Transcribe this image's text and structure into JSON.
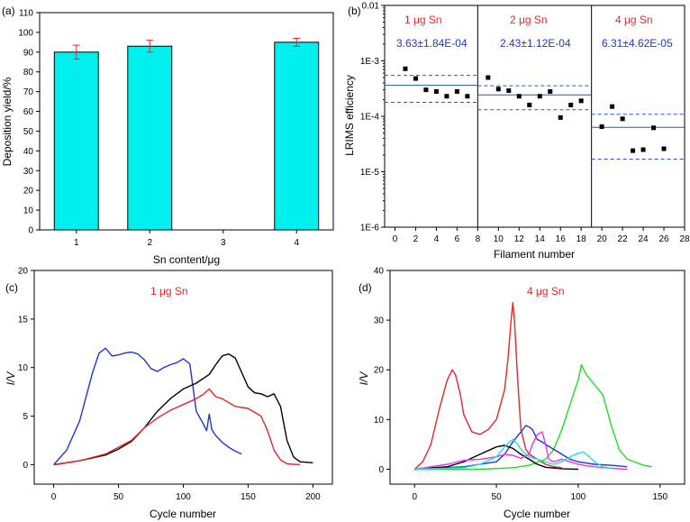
{
  "colors": {
    "bar_fill": "#00f0f0",
    "err": "#e8262a",
    "red": "#e8262a",
    "blue": "#1f35d8",
    "black": "#000000",
    "green": "#22dd22",
    "magenta": "#ee33ee",
    "cyan": "#22dddd",
    "mean_line": "#2255dd"
  },
  "chart_data": [
    {
      "panel": "(a)",
      "type": "bar",
      "xlabel": "Sn content/μg",
      "ylabel": "Deposition yield/%",
      "xlim": [
        0.5,
        4.5
      ],
      "xticks": [
        "1",
        "2",
        "3",
        "4"
      ],
      "ylim": [
        0,
        110
      ],
      "yticks": [
        "0",
        "10",
        "20",
        "30",
        "40",
        "50",
        "60",
        "70",
        "80",
        "90",
        "100",
        "110"
      ],
      "categories": [
        "1",
        "2",
        "4"
      ],
      "values": [
        90,
        93,
        95
      ],
      "errors": [
        3.5,
        3,
        2
      ]
    },
    {
      "panel": "(b)",
      "type": "scatter",
      "xlabel": "Filament number",
      "ylabel": "LRIMS efficiency",
      "xlim": [
        -1,
        28
      ],
      "xticks": [
        "0",
        "2",
        "4",
        "6",
        "8",
        "10",
        "12",
        "14",
        "16",
        "18",
        "20",
        "22",
        "24",
        "26",
        "28"
      ],
      "yscale": "log",
      "ylim": [
        1e-06,
        0.01
      ],
      "yticks": [
        "1E-6",
        "1E-5",
        "1E-4",
        "1E-3",
        "0.01"
      ],
      "dividers": [
        8,
        19
      ],
      "groups": [
        {
          "label": "1 μg Sn",
          "stat": "3.63±1.84E-04",
          "x_range": [
            -1,
            8
          ],
          "mean": 0.000363,
          "upper": 0.000547,
          "lower": 0.000179,
          "points": [
            [
              1,
              0.00072
            ],
            [
              2,
              0.00048
            ],
            [
              3,
              0.0003
            ],
            [
              4,
              0.00028
            ],
            [
              5,
              0.00023
            ],
            [
              6,
              0.00028
            ],
            [
              7,
              0.00023
            ]
          ]
        },
        {
          "label": "2 μg Sn",
          "stat": "2.43±1.12E-04",
          "x_range": [
            8,
            19
          ],
          "mean": 0.000243,
          "upper": 0.000355,
          "lower": 0.000131,
          "points": [
            [
              9,
              0.0005
            ],
            [
              10,
              0.00031
            ],
            [
              11,
              0.00029
            ],
            [
              12,
              0.00023
            ],
            [
              13,
              0.00016
            ],
            [
              14,
              0.00023
            ],
            [
              15,
              0.00028
            ],
            [
              16,
              9.5e-05
            ],
            [
              17,
              0.00016
            ],
            [
              18,
              0.00019
            ]
          ]
        },
        {
          "label": "4 μg Sn",
          "stat": "6.31±4.62E-05",
          "x_range": [
            19,
            28
          ],
          "mean": 6.31e-05,
          "upper": 0.000109,
          "lower": 1.69e-05,
          "points": [
            [
              20,
              6.5e-05
            ],
            [
              21,
              0.00015
            ],
            [
              22,
              9e-05
            ],
            [
              23,
              2.4e-05
            ],
            [
              24,
              2.5e-05
            ],
            [
              25,
              6.2e-05
            ],
            [
              26,
              2.6e-05
            ]
          ]
        }
      ]
    },
    {
      "panel": "(c)",
      "type": "line",
      "annotation": "1 μg Sn",
      "xlabel": "Cycle number",
      "ylabel": "I/V",
      "xlim": [
        -15,
        215
      ],
      "xticks": [
        "0",
        "50",
        "100",
        "150",
        "200"
      ],
      "ylim": [
        -2,
        20
      ],
      "yticks": [
        "0",
        "5",
        "10",
        "15",
        "20"
      ],
      "series": [
        {
          "name": "blue",
          "color": "blue",
          "x": [
            0,
            10,
            20,
            30,
            35,
            40,
            45,
            50,
            55,
            60,
            65,
            70,
            75,
            80,
            85,
            90,
            95,
            100,
            105,
            110,
            115,
            118,
            120,
            122,
            125,
            130,
            135,
            140,
            145
          ],
          "y": [
            0,
            1.5,
            4.5,
            9.5,
            11.5,
            12.0,
            11.2,
            11.3,
            11.5,
            11.6,
            11.4,
            10.8,
            9.9,
            9.6,
            10.0,
            10.3,
            10.5,
            10.9,
            10.4,
            5.5,
            4.3,
            3.5,
            5.2,
            3.6,
            3.0,
            2.3,
            1.8,
            1.4,
            1.1
          ]
        },
        {
          "name": "black",
          "color": "black",
          "x": [
            0,
            20,
            40,
            50,
            60,
            70,
            80,
            90,
            100,
            110,
            120,
            125,
            130,
            135,
            140,
            145,
            150,
            155,
            160,
            165,
            170,
            175,
            180,
            185,
            190,
            200
          ],
          "y": [
            0,
            0.4,
            1.0,
            1.6,
            2.4,
            3.8,
            5.5,
            6.8,
            7.8,
            8.4,
            9.3,
            10.3,
            11.2,
            11.4,
            11.0,
            9.5,
            8.0,
            7.4,
            7.3,
            7.0,
            7.3,
            6.0,
            2.5,
            0.8,
            0.3,
            0.2
          ]
        },
        {
          "name": "red",
          "color": "red",
          "x": [
            0,
            20,
            40,
            50,
            60,
            70,
            80,
            90,
            100,
            110,
            115,
            120,
            125,
            130,
            140,
            150,
            160,
            165,
            170,
            175,
            180,
            190
          ],
          "y": [
            0,
            0.4,
            1.1,
            1.8,
            2.5,
            3.8,
            4.8,
            5.6,
            6.2,
            6.8,
            7.2,
            7.8,
            7.0,
            6.8,
            6.0,
            5.8,
            5.0,
            3.5,
            1.5,
            0.5,
            0.1,
            0
          ]
        }
      ]
    },
    {
      "panel": "(d)",
      "type": "line",
      "annotation": "4 μg Sn",
      "xlabel": "Cycle number",
      "ylabel": "I/V",
      "xlim": [
        -15,
        165
      ],
      "xticks": [
        "0",
        "50",
        "100",
        "150"
      ],
      "ylim": [
        -3,
        40
      ],
      "yticks": [
        "0",
        "10",
        "20",
        "30",
        "40"
      ],
      "series": [
        {
          "name": "red",
          "color": "red",
          "x": [
            0,
            5,
            10,
            15,
            20,
            23,
            25,
            28,
            30,
            35,
            40,
            45,
            50,
            55,
            57,
            59,
            60,
            61,
            63,
            65,
            68,
            70,
            75,
            80,
            85,
            90
          ],
          "y": [
            0,
            1.5,
            5.0,
            12.0,
            18.0,
            20.0,
            19.0,
            15.0,
            11.0,
            7.5,
            7.0,
            8.0,
            10.0,
            16.0,
            22.0,
            30.0,
            33.5,
            30.0,
            18.0,
            8.0,
            4.0,
            3.0,
            2.0,
            1.0,
            0.5,
            0.3
          ]
        },
        {
          "name": "green",
          "color": "green",
          "x": [
            0,
            40,
            60,
            70,
            80,
            85,
            90,
            95,
            100,
            102,
            105,
            110,
            115,
            120,
            125,
            130,
            140,
            145
          ],
          "y": [
            0,
            0,
            0.3,
            0.8,
            2.0,
            4.0,
            8.0,
            13.0,
            18.0,
            21.0,
            19.0,
            17.0,
            15.0,
            9.0,
            4.0,
            2.0,
            0.8,
            0.5
          ]
        },
        {
          "name": "blue",
          "color": "blue",
          "x": [
            0,
            30,
            50,
            55,
            60,
            65,
            68,
            70,
            72,
            75,
            78,
            80,
            85,
            90,
            95,
            100,
            110,
            120,
            130
          ],
          "y": [
            0,
            0.5,
            1.5,
            3.0,
            5.5,
            7.5,
            8.8,
            8.5,
            8.0,
            6.0,
            5.5,
            5.0,
            4.0,
            3.0,
            2.0,
            1.5,
            1.0,
            0.8,
            0.5
          ]
        },
        {
          "name": "black",
          "color": "black",
          "x": [
            0,
            20,
            30,
            40,
            50,
            55,
            60,
            65,
            70,
            75,
            80,
            90,
            100
          ],
          "y": [
            0,
            0.5,
            1.5,
            3.0,
            4.5,
            4.8,
            4.2,
            3.0,
            2.0,
            1.0,
            0.4,
            0.1,
            0
          ]
        },
        {
          "name": "magenta",
          "color": "magenta",
          "x": [
            0,
            20,
            30,
            40,
            50,
            55,
            60,
            65,
            70,
            72,
            75,
            78,
            80,
            82,
            85,
            90,
            95,
            100,
            105,
            110,
            120,
            130
          ],
          "y": [
            0,
            1.0,
            1.8,
            2.0,
            2.5,
            3.0,
            2.8,
            2.2,
            3.0,
            5.0,
            7.0,
            7.5,
            5.0,
            2.0,
            1.5,
            2.0,
            1.5,
            1.0,
            0.7,
            0.5,
            0.2,
            0
          ]
        },
        {
          "name": "cyan",
          "color": "cyan",
          "x": [
            0,
            30,
            40,
            50,
            55,
            58,
            60,
            63,
            65,
            68,
            70,
            75,
            80,
            85,
            90,
            95,
            100,
            103,
            105,
            110,
            115,
            120
          ],
          "y": [
            0,
            0.3,
            1.0,
            2.5,
            4.5,
            5.5,
            6.0,
            5.0,
            4.0,
            3.0,
            2.5,
            2.0,
            1.5,
            1.0,
            1.5,
            2.5,
            3.2,
            3.5,
            3.0,
            1.5,
            0.5,
            0.2
          ]
        }
      ]
    }
  ]
}
